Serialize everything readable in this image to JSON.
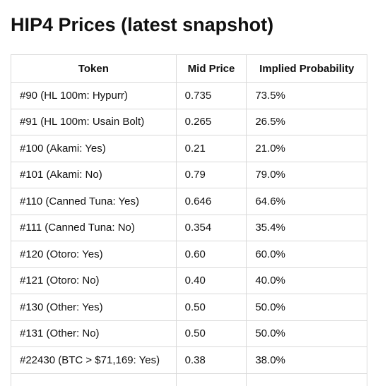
{
  "header": {
    "title": "HIP4 Prices (latest snapshot)"
  },
  "table": {
    "columns": [
      "Token",
      "Mid Price",
      "Implied Probability"
    ],
    "rows": [
      [
        "#90 (HL 100m: Hypurr)",
        "0.735",
        "73.5%"
      ],
      [
        "#91 (HL 100m: Usain Bolt)",
        "0.265",
        "26.5%"
      ],
      [
        "#100 (Akami: Yes)",
        "0.21",
        "21.0%"
      ],
      [
        "#101 (Akami: No)",
        "0.79",
        "79.0%"
      ],
      [
        "#110 (Canned Tuna: Yes)",
        "0.646",
        "64.6%"
      ],
      [
        "#111 (Canned Tuna: No)",
        "0.354",
        "35.4%"
      ],
      [
        "#120 (Otoro: Yes)",
        "0.60",
        "60.0%"
      ],
      [
        "#121 (Otoro: No)",
        "0.40",
        "40.0%"
      ],
      [
        "#130 (Other: Yes)",
        "0.50",
        "50.0%"
      ],
      [
        "#131 (Other: No)",
        "0.50",
        "50.0%"
      ],
      [
        "#22430 (BTC > $71,169: Yes)",
        "0.38",
        "38.0%"
      ]
    ]
  }
}
